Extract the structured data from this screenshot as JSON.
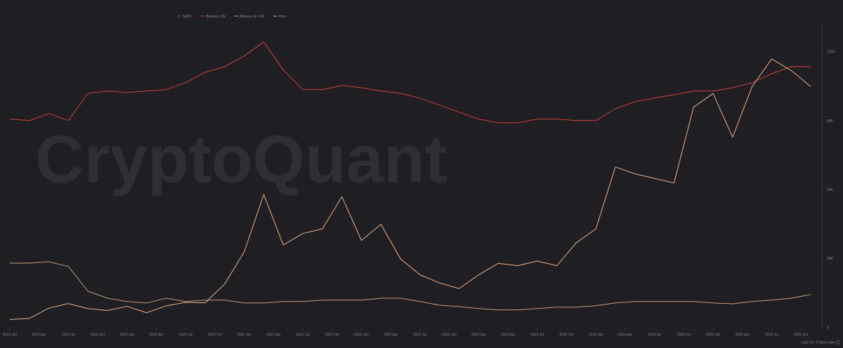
{
  "chart_data": {
    "type": "line",
    "watermark": "CryptoQuant",
    "footer": "Last run: 3 hours ago",
    "hidden_series": [
      {
        "name": "NUPL",
        "color": "#6b6a70"
      }
    ],
    "grid": false,
    "xlim": [
      "2018-12",
      "2025-12"
    ],
    "x": [
      "2019-01",
      "2019-03",
      "2019-05",
      "2019-07",
      "2019-09",
      "2019-11",
      "2020-01",
      "2020-03",
      "2020-05",
      "2020-07",
      "2020-09",
      "2020-11",
      "2021-01",
      "2021-03",
      "2021-05",
      "2021-07",
      "2021-09",
      "2021-11",
      "2022-01",
      "2022-03",
      "2022-05",
      "2022-07",
      "2022-09",
      "2022-11",
      "2023-01",
      "2023-03",
      "2023-05",
      "2023-07",
      "2023-09",
      "2023-11",
      "2024-01",
      "2024-03",
      "2024-05",
      "2024-07",
      "2024-09",
      "2024-11",
      "2025-01",
      "2025-03",
      "2025-05",
      "2025-07",
      "2025-09",
      "2025-11"
    ],
    "xticks": [
      {
        "value": "2019-01",
        "label": "2019 Jan"
      },
      {
        "value": "2019-04",
        "label": "2019 Apr"
      },
      {
        "value": "2019-07",
        "label": "2019 Jul"
      },
      {
        "value": "2019-10",
        "label": "2019 Oct"
      },
      {
        "value": "2020-01",
        "label": "2020 Jan"
      },
      {
        "value": "2020-04",
        "label": "2020 Apr"
      },
      {
        "value": "2020-07",
        "label": "2020 Jul"
      },
      {
        "value": "2020-10",
        "label": "2020 Oct"
      },
      {
        "value": "2021-01",
        "label": "2021 Jan"
      },
      {
        "value": "2021-04",
        "label": "2021 Apr"
      },
      {
        "value": "2021-07",
        "label": "2021 Jul"
      },
      {
        "value": "2021-10",
        "label": "2021 Oct"
      },
      {
        "value": "2022-01",
        "label": "2022 Jan"
      },
      {
        "value": "2022-04",
        "label": "2022 Apr"
      },
      {
        "value": "2022-07",
        "label": "2022 Jul"
      },
      {
        "value": "2022-10",
        "label": "2022 Oct"
      },
      {
        "value": "2023-01",
        "label": "2023 Jan"
      },
      {
        "value": "2023-04",
        "label": "2023 Apr"
      },
      {
        "value": "2023-07",
        "label": "2023 Jul"
      },
      {
        "value": "2023-10",
        "label": "2023 Oct"
      },
      {
        "value": "2024-01",
        "label": "2024 Jan"
      },
      {
        "value": "2024-04",
        "label": "2024 Apr"
      },
      {
        "value": "2024-07",
        "label": "2024 Jul"
      },
      {
        "value": "2024-10",
        "label": "2024 Oct"
      },
      {
        "value": "2025-01",
        "label": "2025 Jan"
      },
      {
        "value": "2025-04",
        "label": "2025 Apr"
      },
      {
        "value": "2025-07",
        "label": "2025 Jul"
      },
      {
        "value": "2025-10",
        "label": "2025 Oct"
      }
    ],
    "ylim": [
      0,
      132000
    ],
    "yticks": [
      0,
      {
        "value": 30000,
        "label": "30K"
      },
      {
        "value": 60000,
        "label": "60K"
      },
      {
        "value": 90000,
        "label": "90K"
      },
      {
        "value": 120000,
        "label": "120K"
      }
    ],
    "y2lim": [
      0,
      108
    ],
    "series": [
      {
        "name": "Balance 10k",
        "color": "#d0433a",
        "axis": "y2",
        "values": [
          74.3,
          73.8,
          76.3,
          73.8,
          83.5,
          84.3,
          83.8,
          84.3,
          84.8,
          87.3,
          91,
          93,
          96.8,
          101.8,
          91.8,
          84.8,
          84.8,
          86.3,
          85.5,
          84.3,
          83.5,
          81.8,
          79.3,
          76.8,
          74.3,
          73,
          73,
          74.3,
          74.3,
          73.8,
          73.8,
          78,
          80.5,
          81.8,
          83,
          84.3,
          84.3,
          85.5,
          87.3,
          90.5,
          93,
          93
        ]
      },
      {
        "name": "Balance 1k~10k",
        "color": "#c2a07f",
        "axis": "y2",
        "values": [
          23,
          23,
          23.5,
          21.8,
          13,
          10.5,
          9.3,
          8.8,
          10.5,
          9.3,
          9.8,
          9.8,
          8.8,
          8.8,
          9.3,
          9.3,
          9.8,
          9.8,
          9.8,
          10.5,
          10.5,
          9.3,
          8,
          7.5,
          6.8,
          6.3,
          6.3,
          6.8,
          7.3,
          7.3,
          7.8,
          8.8,
          9.3,
          9.3,
          9.3,
          9.3,
          8.8,
          8.5,
          9.3,
          9.8,
          10.5,
          11.8
        ]
      },
      {
        "name": "Price",
        "color": "#e6b38a",
        "values": [
          3500,
          4000,
          8500,
          10500,
          8300,
          7500,
          9300,
          6500,
          9500,
          11000,
          10800,
          19000,
          33000,
          58000,
          36000,
          41000,
          43000,
          57000,
          38000,
          45000,
          30000,
          23000,
          19500,
          17000,
          23000,
          28000,
          27000,
          29000,
          27000,
          37000,
          43000,
          70000,
          67000,
          65000,
          63000,
          96000,
          102000,
          83000,
          105000,
          117000,
          112000,
          105000
        ]
      }
    ]
  }
}
